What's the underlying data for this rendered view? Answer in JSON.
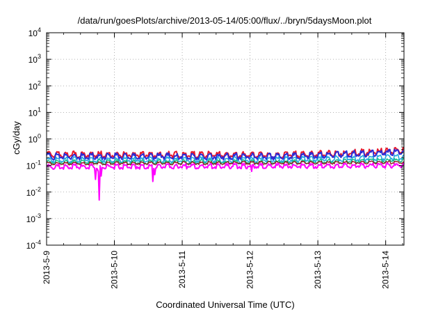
{
  "chart_data": {
    "type": "line",
    "title": "/data/run/goesPlots/archive/2013-05-14/05:00/flux/../bryn/5daysMoon.plot",
    "xlabel": "Coordinated Universal Time (UTC)",
    "ylabel": "cGy/day",
    "y_scale": "log",
    "ylim": [
      0.0001,
      10000
    ],
    "y_ticks": [
      {
        "base": "10",
        "exp": "-4"
      },
      {
        "base": "10",
        "exp": "-3"
      },
      {
        "base": "10",
        "exp": "-2"
      },
      {
        "base": "10",
        "exp": "-1"
      },
      {
        "base": "10",
        "exp": "0"
      },
      {
        "base": "10",
        "exp": "1"
      },
      {
        "base": "10",
        "exp": "2"
      },
      {
        "base": "10",
        "exp": "3"
      },
      {
        "base": "10",
        "exp": "4"
      }
    ],
    "x_ticks": [
      "2013-5-9",
      "2013-5-10",
      "2013-5-11",
      "2013-5-12",
      "2013-5-13",
      "2013-5-14"
    ],
    "xlim_days": [
      0,
      5.27
    ],
    "grid": true,
    "series": [
      {
        "color": "#e8192c",
        "levels": [
          [
            0,
            0.26
          ],
          [
            3.5,
            0.25
          ],
          [
            4.5,
            0.3
          ],
          [
            5.27,
            0.36
          ]
        ],
        "noise": 0.13,
        "seed": 3,
        "width": 2
      },
      {
        "color": "#2b2bd6",
        "levels": [
          [
            0,
            0.22
          ],
          [
            3.5,
            0.22
          ],
          [
            4.5,
            0.27
          ],
          [
            5.27,
            0.32
          ]
        ],
        "noise": 0.13,
        "seed": 7,
        "width": 2
      },
      {
        "color": "#22a7e0",
        "levels": [
          [
            0,
            0.165
          ],
          [
            3.5,
            0.165
          ],
          [
            5.27,
            0.2
          ]
        ],
        "noise": 0.12,
        "seed": 11,
        "width": 1.6
      },
      {
        "color": "#1dbd8a",
        "levels": [
          [
            0,
            0.135
          ],
          [
            3.5,
            0.135
          ],
          [
            5.27,
            0.155
          ]
        ],
        "noise": 0.09,
        "seed": 13,
        "width": 1.6
      },
      {
        "color": "#8b1a1a",
        "levels": [
          [
            0,
            0.12
          ],
          [
            5.27,
            0.13
          ]
        ],
        "noise": 0.06,
        "seed": 17,
        "width": 1.4
      },
      {
        "color": "#ff00ff",
        "levels": [
          [
            0,
            0.09
          ],
          [
            5.27,
            0.1
          ]
        ],
        "noise": 0.1,
        "seed": 19,
        "width": 2,
        "dips": [
          [
            0.72,
            0.03
          ],
          [
            0.76,
            0.06
          ],
          [
            0.78,
            0.005
          ],
          [
            0.8,
            0.04
          ],
          [
            1.57,
            0.025
          ],
          [
            1.6,
            0.045
          ],
          [
            3.02,
            0.06
          ]
        ]
      }
    ]
  }
}
